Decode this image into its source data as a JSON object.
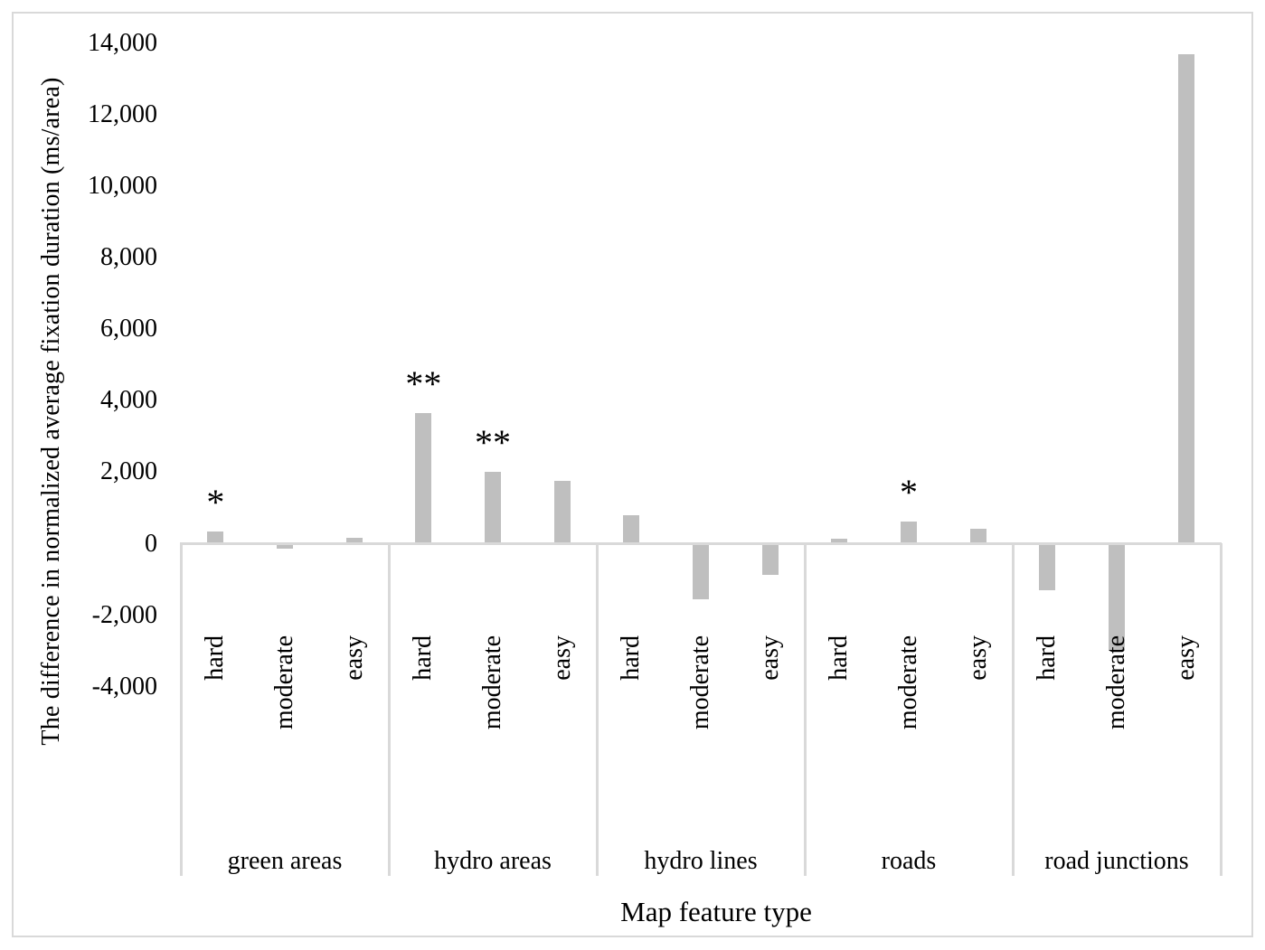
{
  "chart_data": {
    "type": "bar",
    "title": "",
    "ylabel": "The difference in normalized average fixation duration (ms/area)",
    "xlabel": "Map feature type",
    "ylim": [
      -4000,
      14000
    ],
    "y_tick_step": 2000,
    "grid": false,
    "legend_position": "none",
    "bar_color": "#bfbfbf",
    "axis_line_color": "#d9d9d9",
    "y_ticks": [
      {
        "value": 14000,
        "label": "14,000"
      },
      {
        "value": 12000,
        "label": "12,000"
      },
      {
        "value": 10000,
        "label": "10,000"
      },
      {
        "value": 8000,
        "label": "8,000"
      },
      {
        "value": 6000,
        "label": "6,000"
      },
      {
        "value": 4000,
        "label": "4,000"
      },
      {
        "value": 2000,
        "label": "2,000"
      },
      {
        "value": 0,
        "label": "0"
      },
      {
        "value": -2000,
        "label": "-2,000"
      },
      {
        "value": -4000,
        "label": "-4,000"
      }
    ],
    "levels": [
      "hard",
      "moderate",
      "easy"
    ],
    "groups": [
      {
        "category": "green areas",
        "values": [
          350,
          -150,
          175
        ],
        "sig": [
          "*",
          "",
          ""
        ]
      },
      {
        "category": "hydro areas",
        "values": [
          3650,
          2000,
          1750
        ],
        "sig": [
          "**",
          "**",
          ""
        ]
      },
      {
        "category": "hydro lines",
        "values": [
          800,
          -1550,
          -875
        ],
        "sig": [
          "",
          "",
          ""
        ]
      },
      {
        "category": "roads",
        "values": [
          150,
          620,
          420
        ],
        "sig": [
          "",
          "*",
          ""
        ]
      },
      {
        "category": "road junctions",
        "values": [
          -1300,
          -3000,
          13700
        ],
        "sig": [
          "",
          "",
          ""
        ]
      }
    ]
  }
}
